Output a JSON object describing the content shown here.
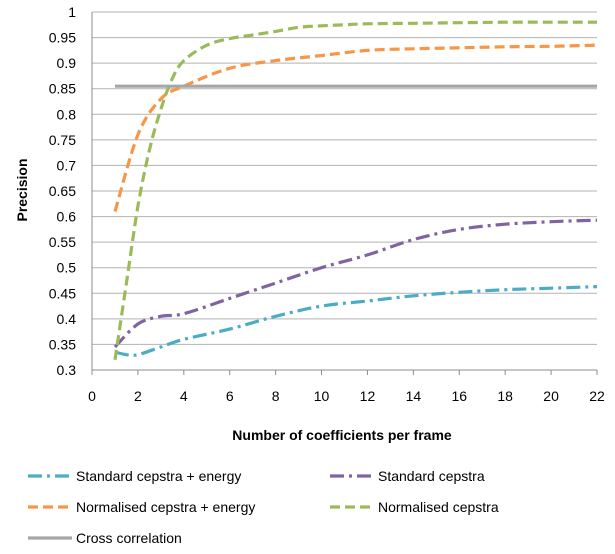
{
  "chart_data": {
    "type": "line",
    "title": "",
    "xlabel": "Number of coefficients per frame",
    "ylabel": "Precision",
    "xlim": [
      0,
      22
    ],
    "ylim": [
      0.3,
      1
    ],
    "x_ticks": [
      "0",
      "2",
      "4",
      "6",
      "8",
      "10",
      "12",
      "14",
      "16",
      "18",
      "20",
      "22"
    ],
    "y_ticks": [
      "0.3",
      "0.35",
      "0.4",
      "0.45",
      "0.5",
      "0.55",
      "0.6",
      "0.65",
      "0.7",
      "0.75",
      "0.8",
      "0.85",
      "0.9",
      "0.95",
      "1"
    ],
    "grid": "horizontal",
    "legend_position": "bottom",
    "series": [
      {
        "name": "Standard cepstra + energy",
        "color": "#4bacc6",
        "dash": "dash-dot",
        "x": [
          1,
          1.5,
          2,
          3,
          4,
          6,
          8,
          10,
          12,
          14,
          16,
          18,
          20,
          22
        ],
        "y": [
          0.335,
          0.33,
          0.33,
          0.345,
          0.36,
          0.38,
          0.405,
          0.425,
          0.435,
          0.445,
          0.452,
          0.457,
          0.46,
          0.463
        ]
      },
      {
        "name": "Standard cepstra",
        "color": "#8064a2",
        "dash": "dash-dot",
        "x": [
          1,
          2,
          3,
          4,
          6,
          8,
          10,
          12,
          14,
          16,
          18,
          20,
          22
        ],
        "y": [
          0.345,
          0.39,
          0.405,
          0.41,
          0.44,
          0.47,
          0.5,
          0.525,
          0.555,
          0.575,
          0.585,
          0.59,
          0.593
        ]
      },
      {
        "name": "Normalised cepstra + energy",
        "color": "#f79646",
        "dash": "dash",
        "x": [
          1,
          2,
          3,
          4,
          6,
          8,
          10,
          12,
          14,
          16,
          18,
          20,
          22
        ],
        "y": [
          0.61,
          0.76,
          0.83,
          0.855,
          0.89,
          0.905,
          0.915,
          0.925,
          0.928,
          0.93,
          0.932,
          0.933,
          0.935
        ]
      },
      {
        "name": "Normalised cepstra",
        "color": "#9bbb59",
        "dash": "dash",
        "x": [
          1,
          1.5,
          2,
          2.5,
          3,
          3.5,
          4,
          5,
          6,
          7,
          8,
          9,
          10,
          11,
          12,
          14,
          16,
          18,
          20,
          22
        ],
        "y": [
          0.32,
          0.47,
          0.62,
          0.73,
          0.81,
          0.87,
          0.905,
          0.935,
          0.948,
          0.955,
          0.962,
          0.97,
          0.973,
          0.975,
          0.977,
          0.978,
          0.979,
          0.98,
          0.98,
          0.98
        ]
      },
      {
        "name": "Cross correlation",
        "color": "#a6a6a6",
        "dash": "solid",
        "x": [
          1,
          22
        ],
        "y": [
          0.855,
          0.855
        ]
      }
    ]
  }
}
